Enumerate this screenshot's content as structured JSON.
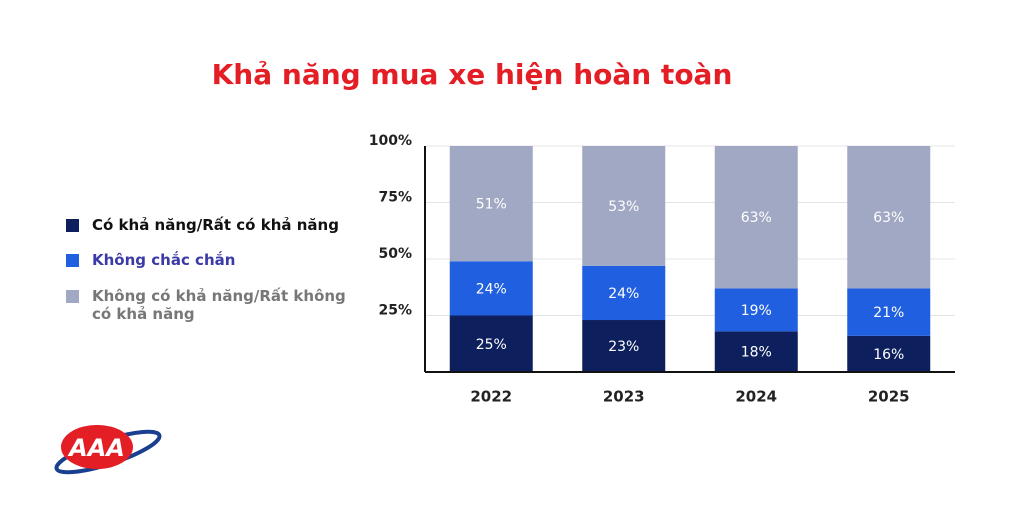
{
  "chart_data": {
    "type": "stacked_bar",
    "title": "Khả năng mua xe hiện hoàn toàn",
    "categories": [
      "2022",
      "2023",
      "2024",
      "2025"
    ],
    "series": [
      {
        "name": "Có khả năng/Rất có khả năng",
        "color": "#0d1f5c",
        "label_color": "#111111",
        "values": [
          25,
          23,
          18,
          16
        ],
        "value_labels": [
          "25%",
          "23%",
          "18%",
          "16%"
        ]
      },
      {
        "name": "Không chắc chắn",
        "color": "#1f5fe0",
        "label_color": "#3a3aa8",
        "values": [
          24,
          24,
          19,
          21
        ],
        "value_labels": [
          "24%",
          "24%",
          "19%",
          "21%"
        ]
      },
      {
        "name": "Không có khả năng/Rất không có khả năng",
        "color": "#a1a8c3",
        "label_color": "#777777",
        "values": [
          51,
          53,
          63,
          63
        ],
        "value_labels": [
          "51%",
          "53%",
          "63%",
          "63%"
        ]
      }
    ],
    "ylim": [
      0,
      100
    ],
    "yticks": [
      {
        "value": 25,
        "label": "25%"
      },
      {
        "value": 50,
        "label": "50%"
      },
      {
        "value": 75,
        "label": "75%"
      },
      {
        "value": 100,
        "label": "100%"
      }
    ],
    "grid": true,
    "logo": "AAA"
  }
}
